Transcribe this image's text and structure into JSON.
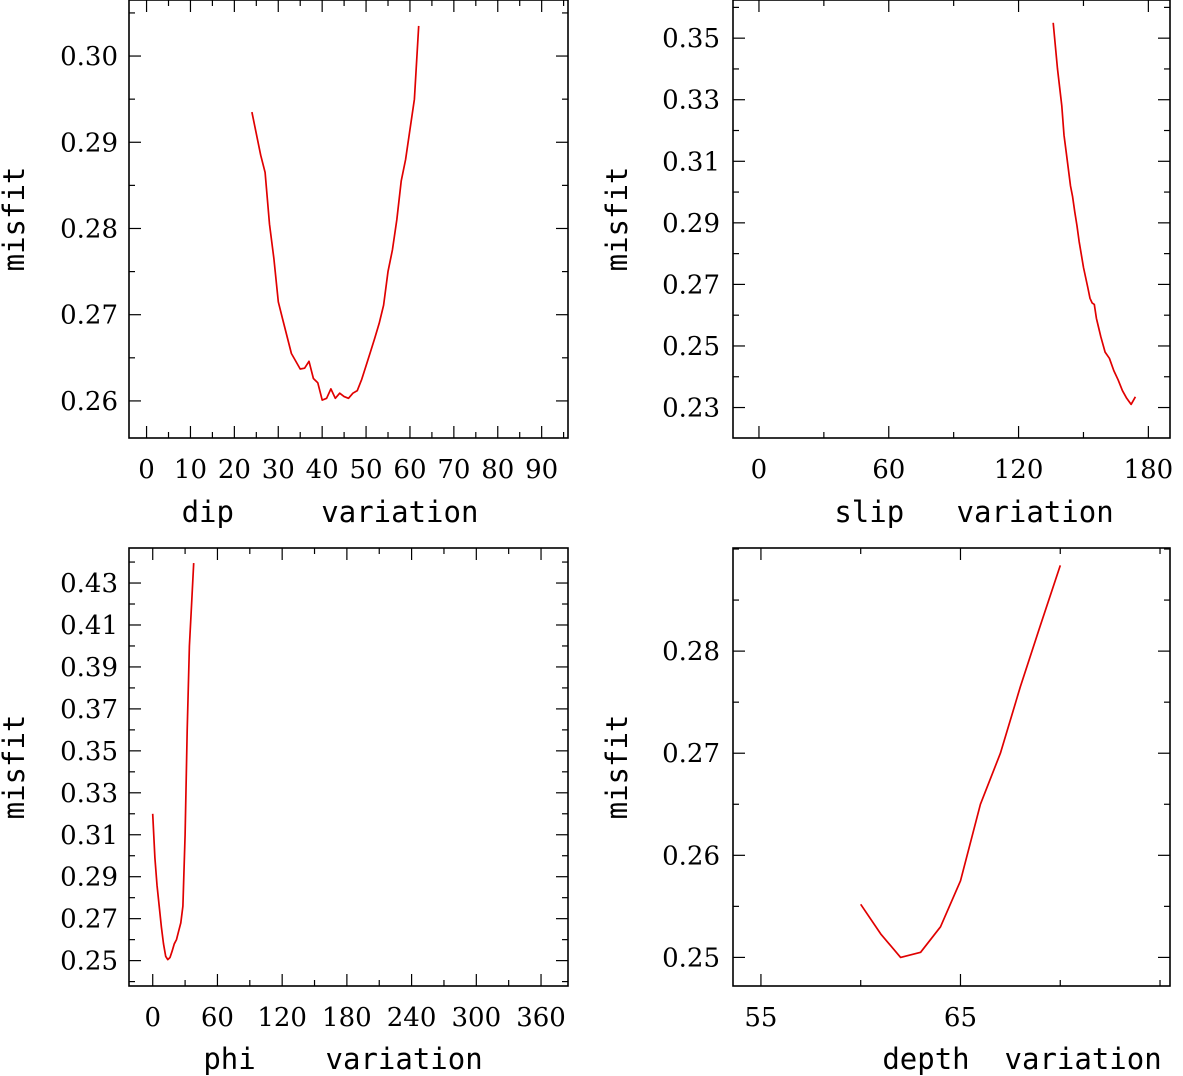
{
  "chart_data": [
    {
      "id": "dip",
      "type": "line",
      "xlabel": "dip     variation",
      "ylabel": "misfit",
      "xlim": [
        -4,
        96
      ],
      "ylim": [
        0.2557,
        0.3065
      ],
      "xticks": [
        0,
        10,
        20,
        30,
        40,
        50,
        60,
        70,
        80,
        90
      ],
      "xtick_labels": [
        "0",
        "10",
        "20",
        "30",
        "40",
        "50",
        "60",
        "70",
        "80",
        "90"
      ],
      "yticks": [
        0.26,
        0.27,
        0.28,
        0.29,
        0.3
      ],
      "ytick_labels": [
        "0.26",
        "0.27",
        "0.28",
        "0.29",
        "0.30"
      ],
      "series": [
        {
          "color": "#e00000",
          "x": [
            24,
            26,
            27,
            28,
            29,
            30,
            31,
            33,
            35,
            36,
            37,
            38,
            39,
            40,
            41,
            42,
            43,
            44,
            45,
            46,
            47,
            48,
            49,
            50,
            51,
            52,
            53,
            54,
            55,
            56,
            57,
            58,
            59,
            60,
            61,
            62
          ],
          "y": [
            0.2935,
            0.2885,
            0.2865,
            0.2805,
            0.2765,
            0.2715,
            0.2695,
            0.2655,
            0.2637,
            0.2638,
            0.2646,
            0.2626,
            0.2621,
            0.2601,
            0.2603,
            0.2614,
            0.2603,
            0.2609,
            0.2605,
            0.2603,
            0.2609,
            0.2612,
            0.2625,
            0.2641,
            0.2657,
            0.2673,
            0.269,
            0.2711,
            0.275,
            0.2775,
            0.281,
            0.2855,
            0.288,
            0.2915,
            0.295,
            0.3035
          ]
        }
      ]
    },
    {
      "id": "slip",
      "type": "line",
      "xlabel": "slip   variation",
      "ylabel": "misfit",
      "xlim": [
        -12,
        190
      ],
      "ylim": [
        0.2201,
        0.3624
      ],
      "xticks": [
        0,
        60,
        120,
        180
      ],
      "xtick_labels": [
        "0",
        "60",
        "120",
        "180"
      ],
      "yticks": [
        0.23,
        0.25,
        0.27,
        0.29,
        0.31,
        0.33,
        0.35
      ],
      "ytick_labels": [
        "0.23",
        "0.25",
        "0.27",
        "0.29",
        "0.31",
        "0.33",
        "0.35"
      ],
      "series": [
        {
          "color": "#e00000",
          "x": [
            136,
            138,
            140,
            141,
            142,
            144,
            145,
            146,
            147,
            148,
            150,
            152,
            153,
            154,
            155,
            156,
            157,
            158,
            160,
            162,
            164,
            166,
            168,
            170,
            172,
            174
          ],
          "y": [
            0.355,
            0.34,
            0.328,
            0.3185,
            0.313,
            0.302,
            0.2985,
            0.2935,
            0.289,
            0.284,
            0.2755,
            0.269,
            0.2655,
            0.264,
            0.2635,
            0.259,
            0.256,
            0.253,
            0.248,
            0.246,
            0.242,
            0.239,
            0.2355,
            0.233,
            0.231,
            0.2335
          ]
        }
      ]
    },
    {
      "id": "phi",
      "type": "line",
      "xlabel": "phi    variation",
      "ylabel": "misfit",
      "xlim": [
        -22,
        385
      ],
      "ylim": [
        0.2379,
        0.4467
      ],
      "xticks": [
        0,
        60,
        120,
        180,
        240,
        300,
        360
      ],
      "xtick_labels": [
        "0",
        "60",
        "120",
        "180",
        "240",
        "300",
        "360"
      ],
      "yticks": [
        0.25,
        0.27,
        0.29,
        0.31,
        0.33,
        0.35,
        0.37,
        0.39,
        0.41,
        0.43
      ],
      "ytick_labels": [
        "0.25",
        "0.27",
        "0.29",
        "0.31",
        "0.33",
        "0.35",
        "0.37",
        "0.39",
        "0.41",
        "0.43"
      ],
      "series": [
        {
          "color": "#e00000",
          "x": [
            0,
            2,
            4,
            6,
            8,
            10,
            12,
            14,
            16,
            18,
            20,
            22,
            24,
            26,
            28,
            30,
            32,
            34,
            36,
            38
          ],
          "y": [
            0.32,
            0.299,
            0.286,
            0.276,
            0.266,
            0.258,
            0.252,
            0.2505,
            0.2515,
            0.2545,
            0.258,
            0.26,
            0.264,
            0.268,
            0.276,
            0.31,
            0.36,
            0.4,
            0.42,
            0.4395
          ]
        }
      ]
    },
    {
      "id": "depth",
      "type": "line",
      "xlabel": "depth  variation",
      "ylabel": "misfit",
      "xlim": [
        53.6,
        75.5
      ],
      "ylim": [
        0.2472,
        0.2901
      ],
      "xticks": [
        55,
        65
      ],
      "xtick_labels": [
        "55",
        "65"
      ],
      "yticks": [
        0.25,
        0.26,
        0.27,
        0.28
      ],
      "ytick_labels": [
        "0.25",
        "0.26",
        "0.27",
        "0.28"
      ],
      "series": [
        {
          "color": "#e00000",
          "x": [
            60,
            61,
            62,
            63,
            64,
            65,
            66,
            67,
            68,
            69,
            70
          ],
          "y": [
            0.2552,
            0.2523,
            0.25,
            0.2505,
            0.253,
            0.2575,
            0.265,
            0.27,
            0.2765,
            0.2825,
            0.2884
          ]
        }
      ]
    }
  ]
}
